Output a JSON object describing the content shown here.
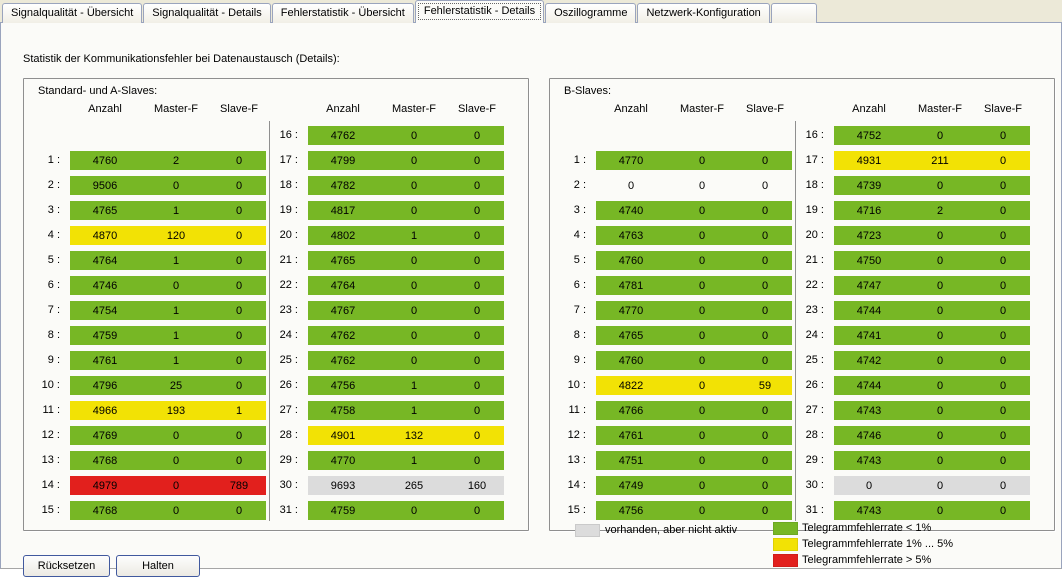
{
  "tabs": {
    "items": [
      {
        "label": "Signalqualität - Übersicht",
        "active": false
      },
      {
        "label": "Signalqualität - Details",
        "active": false
      },
      {
        "label": "Fehlerstatistik - Übersicht",
        "active": false
      },
      {
        "label": "Fehlerstatistik - Details",
        "active": true
      },
      {
        "label": "Oszillogramme",
        "active": false
      },
      {
        "label": "Netzwerk-Konfiguration",
        "active": false
      }
    ]
  },
  "heading": "Statistik der Kommunikationsfehler bei Datenaustausch  (Details):",
  "column_headers": [
    "Anzahl",
    "Master-F",
    "Slave-F"
  ],
  "status_colors": {
    "green": "#77b725",
    "yellow": "#f2e205",
    "red": "#e2201d",
    "gray": "#dcdcdc",
    "none": "transparent"
  },
  "groups": [
    {
      "title": "Standard- und A-Slaves:",
      "rows": [
        {
          "n": 1,
          "anzahl": "4760",
          "master": "2",
          "slave": "0",
          "status": "green"
        },
        {
          "n": 2,
          "anzahl": "9506",
          "master": "0",
          "slave": "0",
          "status": "green"
        },
        {
          "n": 3,
          "anzahl": "4765",
          "master": "1",
          "slave": "0",
          "status": "green"
        },
        {
          "n": 4,
          "anzahl": "4870",
          "master": "120",
          "slave": "0",
          "status": "yellow"
        },
        {
          "n": 5,
          "anzahl": "4764",
          "master": "1",
          "slave": "0",
          "status": "green"
        },
        {
          "n": 6,
          "anzahl": "4746",
          "master": "0",
          "slave": "0",
          "status": "green"
        },
        {
          "n": 7,
          "anzahl": "4754",
          "master": "1",
          "slave": "0",
          "status": "green"
        },
        {
          "n": 8,
          "anzahl": "4759",
          "master": "1",
          "slave": "0",
          "status": "green"
        },
        {
          "n": 9,
          "anzahl": "4761",
          "master": "1",
          "slave": "0",
          "status": "green"
        },
        {
          "n": 10,
          "anzahl": "4796",
          "master": "25",
          "slave": "0",
          "status": "green"
        },
        {
          "n": 11,
          "anzahl": "4966",
          "master": "193",
          "slave": "1",
          "status": "yellow"
        },
        {
          "n": 12,
          "anzahl": "4769",
          "master": "0",
          "slave": "0",
          "status": "green"
        },
        {
          "n": 13,
          "anzahl": "4768",
          "master": "0",
          "slave": "0",
          "status": "green"
        },
        {
          "n": 14,
          "anzahl": "4979",
          "master": "0",
          "slave": "789",
          "status": "red"
        },
        {
          "n": 15,
          "anzahl": "4768",
          "master": "0",
          "slave": "0",
          "status": "green"
        },
        {
          "n": 16,
          "anzahl": "4762",
          "master": "0",
          "slave": "0",
          "status": "green"
        },
        {
          "n": 17,
          "anzahl": "4799",
          "master": "0",
          "slave": "0",
          "status": "green"
        },
        {
          "n": 18,
          "anzahl": "4782",
          "master": "0",
          "slave": "0",
          "status": "green"
        },
        {
          "n": 19,
          "anzahl": "4817",
          "master": "0",
          "slave": "0",
          "status": "green"
        },
        {
          "n": 20,
          "anzahl": "4802",
          "master": "1",
          "slave": "0",
          "status": "green"
        },
        {
          "n": 21,
          "anzahl": "4765",
          "master": "0",
          "slave": "0",
          "status": "green"
        },
        {
          "n": 22,
          "anzahl": "4764",
          "master": "0",
          "slave": "0",
          "status": "green"
        },
        {
          "n": 23,
          "anzahl": "4767",
          "master": "0",
          "slave": "0",
          "status": "green"
        },
        {
          "n": 24,
          "anzahl": "4762",
          "master": "0",
          "slave": "0",
          "status": "green"
        },
        {
          "n": 25,
          "anzahl": "4762",
          "master": "0",
          "slave": "0",
          "status": "green"
        },
        {
          "n": 26,
          "anzahl": "4756",
          "master": "1",
          "slave": "0",
          "status": "green"
        },
        {
          "n": 27,
          "anzahl": "4758",
          "master": "1",
          "slave": "0",
          "status": "green"
        },
        {
          "n": 28,
          "anzahl": "4901",
          "master": "132",
          "slave": "0",
          "status": "yellow"
        },
        {
          "n": 29,
          "anzahl": "4770",
          "master": "1",
          "slave": "0",
          "status": "green"
        },
        {
          "n": 30,
          "anzahl": "9693",
          "master": "265",
          "slave": "160",
          "status": "gray"
        },
        {
          "n": 31,
          "anzahl": "4759",
          "master": "0",
          "slave": "0",
          "status": "green"
        }
      ]
    },
    {
      "title": "B-Slaves:",
      "rows": [
        {
          "n": 1,
          "anzahl": "4770",
          "master": "0",
          "slave": "0",
          "status": "green"
        },
        {
          "n": 2,
          "anzahl": "0",
          "master": "0",
          "slave": "0",
          "status": "none"
        },
        {
          "n": 3,
          "anzahl": "4740",
          "master": "0",
          "slave": "0",
          "status": "green"
        },
        {
          "n": 4,
          "anzahl": "4763",
          "master": "0",
          "slave": "0",
          "status": "green"
        },
        {
          "n": 5,
          "anzahl": "4760",
          "master": "0",
          "slave": "0",
          "status": "green"
        },
        {
          "n": 6,
          "anzahl": "4781",
          "master": "0",
          "slave": "0",
          "status": "green"
        },
        {
          "n": 7,
          "anzahl": "4770",
          "master": "0",
          "slave": "0",
          "status": "green"
        },
        {
          "n": 8,
          "anzahl": "4765",
          "master": "0",
          "slave": "0",
          "status": "green"
        },
        {
          "n": 9,
          "anzahl": "4760",
          "master": "0",
          "slave": "0",
          "status": "green"
        },
        {
          "n": 10,
          "anzahl": "4822",
          "master": "0",
          "slave": "59",
          "status": "yellow"
        },
        {
          "n": 11,
          "anzahl": "4766",
          "master": "0",
          "slave": "0",
          "status": "green"
        },
        {
          "n": 12,
          "anzahl": "4761",
          "master": "0",
          "slave": "0",
          "status": "green"
        },
        {
          "n": 13,
          "anzahl": "4751",
          "master": "0",
          "slave": "0",
          "status": "green"
        },
        {
          "n": 14,
          "anzahl": "4749",
          "master": "0",
          "slave": "0",
          "status": "green"
        },
        {
          "n": 15,
          "anzahl": "4756",
          "master": "0",
          "slave": "0",
          "status": "green"
        },
        {
          "n": 16,
          "anzahl": "4752",
          "master": "0",
          "slave": "0",
          "status": "green"
        },
        {
          "n": 17,
          "anzahl": "4931",
          "master": "211",
          "slave": "0",
          "status": "yellow"
        },
        {
          "n": 18,
          "anzahl": "4739",
          "master": "0",
          "slave": "0",
          "status": "green"
        },
        {
          "n": 19,
          "anzahl": "4716",
          "master": "2",
          "slave": "0",
          "status": "green"
        },
        {
          "n": 20,
          "anzahl": "4723",
          "master": "0",
          "slave": "0",
          "status": "green"
        },
        {
          "n": 21,
          "anzahl": "4750",
          "master": "0",
          "slave": "0",
          "status": "green"
        },
        {
          "n": 22,
          "anzahl": "4747",
          "master": "0",
          "slave": "0",
          "status": "green"
        },
        {
          "n": 23,
          "anzahl": "4744",
          "master": "0",
          "slave": "0",
          "status": "green"
        },
        {
          "n": 24,
          "anzahl": "4741",
          "master": "0",
          "slave": "0",
          "status": "green"
        },
        {
          "n": 25,
          "anzahl": "4742",
          "master": "0",
          "slave": "0",
          "status": "green"
        },
        {
          "n": 26,
          "anzahl": "4744",
          "master": "0",
          "slave": "0",
          "status": "green"
        },
        {
          "n": 27,
          "anzahl": "4743",
          "master": "0",
          "slave": "0",
          "status": "green"
        },
        {
          "n": 28,
          "anzahl": "4746",
          "master": "0",
          "slave": "0",
          "status": "green"
        },
        {
          "n": 29,
          "anzahl": "4743",
          "master": "0",
          "slave": "0",
          "status": "green"
        },
        {
          "n": 30,
          "anzahl": "0",
          "master": "0",
          "slave": "0",
          "status": "gray"
        },
        {
          "n": 31,
          "anzahl": "4743",
          "master": "0",
          "slave": "0",
          "status": "green"
        }
      ]
    }
  ],
  "buttons": {
    "reset": "Rücksetzen",
    "hold": "Halten"
  },
  "legend": {
    "inactive": {
      "label": "vorhanden, aber nicht aktiv",
      "color": "#dcdcdc"
    },
    "rates": [
      {
        "label": "Telegrammfehlerrate < 1%",
        "color": "#77b725"
      },
      {
        "label": "Telegrammfehlerrate 1% ... 5%",
        "color": "#f2e205"
      },
      {
        "label": "Telegrammfehlerrate > 5%",
        "color": "#e2201d"
      }
    ]
  }
}
